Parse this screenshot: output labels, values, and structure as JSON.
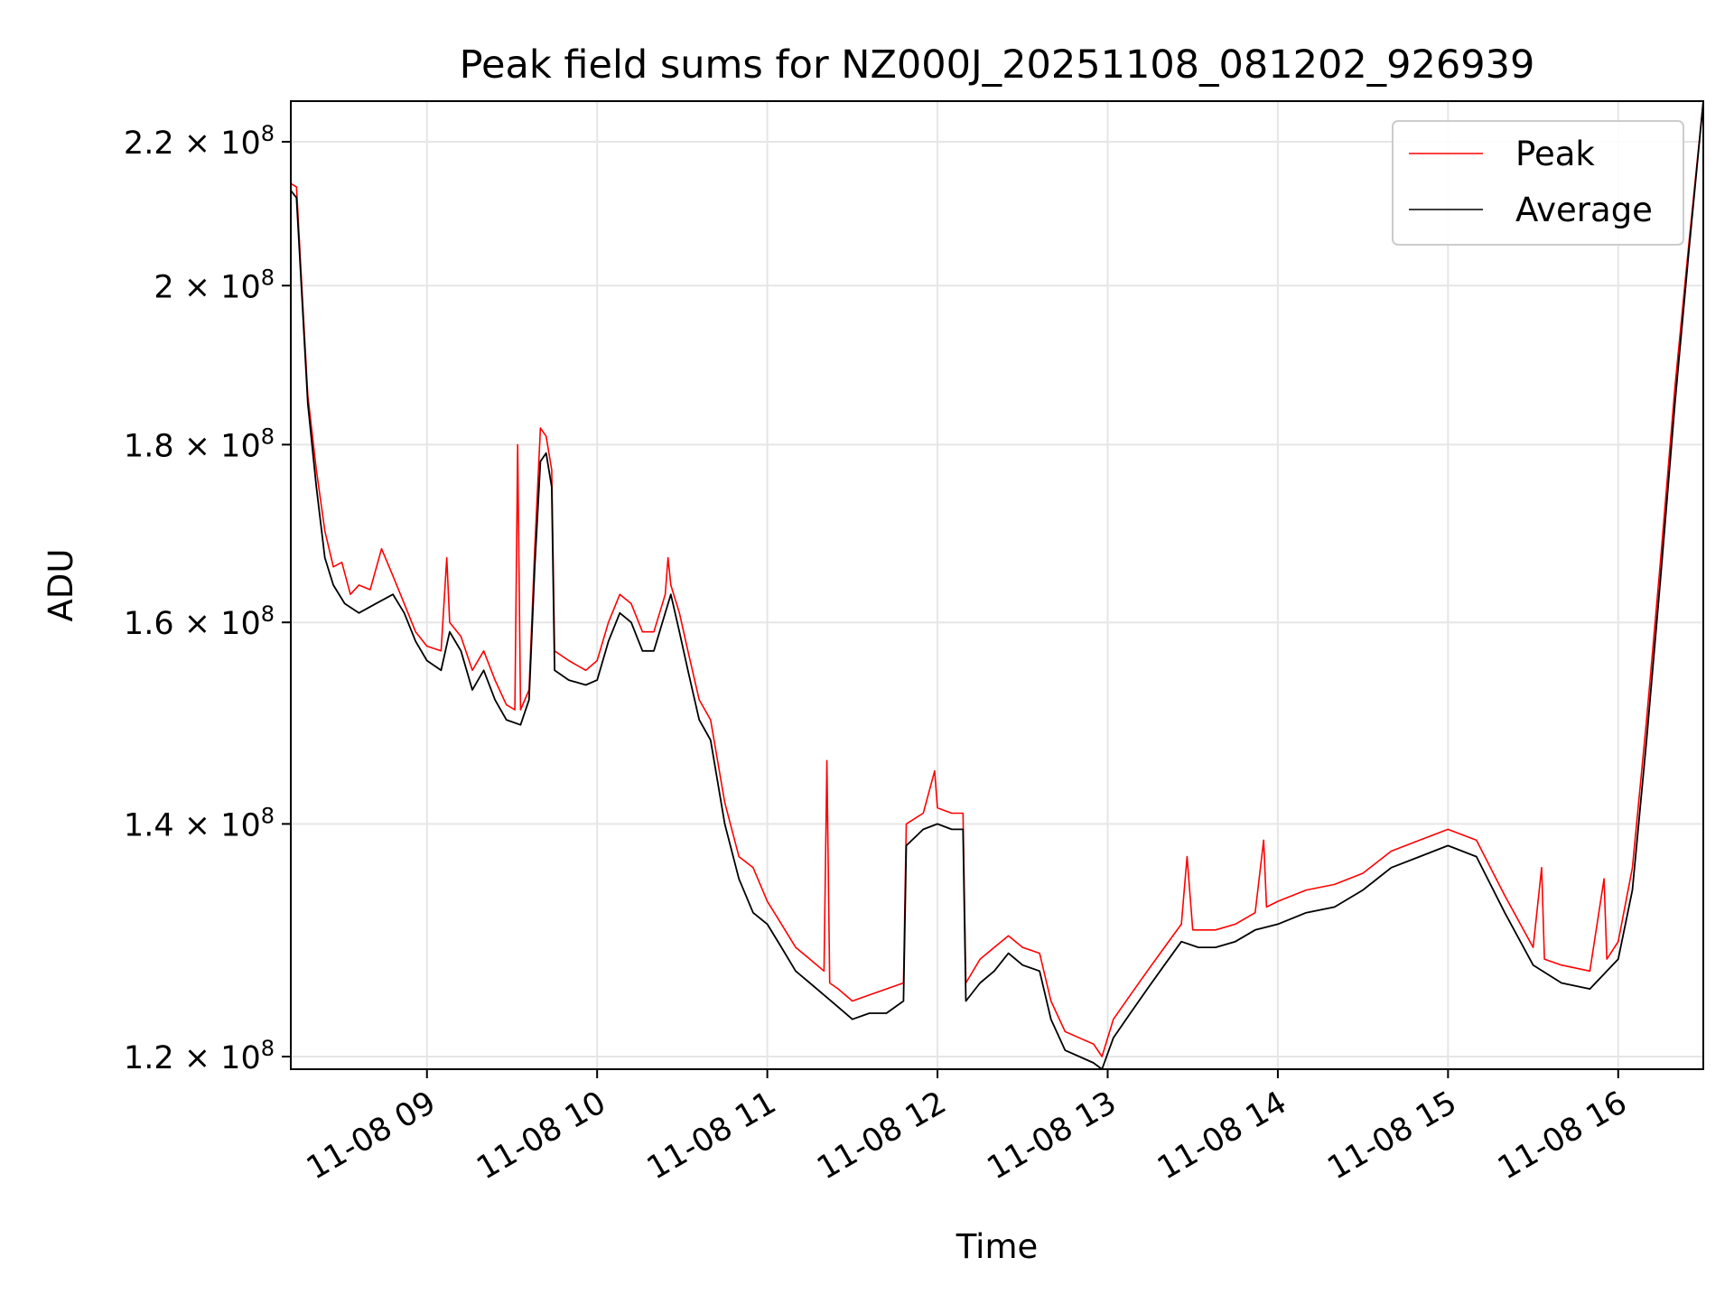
{
  "chart_data": {
    "type": "line",
    "title": "Peak field sums for NZ000J_20251108_081202_926939",
    "xlabel": "Time",
    "ylabel": "ADU",
    "yscale": "log",
    "xlim": [
      "2025-11-08T08:12",
      "2025-11-08T16:30"
    ],
    "ylim": [
      119000000,
      226000000
    ],
    "grid": true,
    "legend": "top-right",
    "x_ticks": [
      {
        "value": "2025-11-08T09:00",
        "label": "11-08 09"
      },
      {
        "value": "2025-11-08T10:00",
        "label": "11-08 10"
      },
      {
        "value": "2025-11-08T11:00",
        "label": "11-08 11"
      },
      {
        "value": "2025-11-08T12:00",
        "label": "11-08 12"
      },
      {
        "value": "2025-11-08T13:00",
        "label": "11-08 13"
      },
      {
        "value": "2025-11-08T14:00",
        "label": "11-08 14"
      },
      {
        "value": "2025-11-08T15:00",
        "label": "11-08 15"
      },
      {
        "value": "2025-11-08T16:00",
        "label": "11-08 16"
      }
    ],
    "y_ticks": [
      {
        "value": 120000000,
        "mantissa": "1.2",
        "base": "× 10",
        "exp": "8"
      },
      {
        "value": 140000000,
        "mantissa": "1.4",
        "base": "× 10",
        "exp": "8"
      },
      {
        "value": 160000000,
        "mantissa": "1.6",
        "base": "× 10",
        "exp": "8"
      },
      {
        "value": 180000000,
        "mantissa": "1.8",
        "base": "× 10",
        "exp": "8"
      },
      {
        "value": 200000000,
        "mantissa": "2",
        "base": "× 10",
        "exp": "8"
      },
      {
        "value": 220000000,
        "mantissa": "2.2",
        "base": "× 10",
        "exp": "8"
      }
    ],
    "series": [
      {
        "name": "Average",
        "color": "#000000",
        "points": [
          [
            "2025-11-08T08:12",
            213000000
          ],
          [
            "2025-11-08T08:14",
            212000000
          ],
          [
            "2025-11-08T08:16",
            198000000
          ],
          [
            "2025-11-08T08:18",
            185000000
          ],
          [
            "2025-11-08T08:21",
            175000000
          ],
          [
            "2025-11-08T08:24",
            167000000
          ],
          [
            "2025-11-08T08:27",
            164000000
          ],
          [
            "2025-11-08T08:31",
            162000000
          ],
          [
            "2025-11-08T08:36",
            161000000
          ],
          [
            "2025-11-08T08:42",
            162000000
          ],
          [
            "2025-11-08T08:48",
            163000000
          ],
          [
            "2025-11-08T08:52",
            161000000
          ],
          [
            "2025-11-08T08:56",
            158000000
          ],
          [
            "2025-11-08T09:00",
            156000000
          ],
          [
            "2025-11-08T09:05",
            155000000
          ],
          [
            "2025-11-08T09:08",
            159000000
          ],
          [
            "2025-11-08T09:12",
            157000000
          ],
          [
            "2025-11-08T09:16",
            153000000
          ],
          [
            "2025-11-08T09:20",
            155000000
          ],
          [
            "2025-11-08T09:24",
            152000000
          ],
          [
            "2025-11-08T09:28",
            150000000
          ],
          [
            "2025-11-08T09:33",
            149500000
          ],
          [
            "2025-11-08T09:36",
            152000000
          ],
          [
            "2025-11-08T09:38",
            166000000
          ],
          [
            "2025-11-08T09:40",
            178000000
          ],
          [
            "2025-11-08T09:42",
            179000000
          ],
          [
            "2025-11-08T09:44",
            175000000
          ],
          [
            "2025-11-08T09:45",
            155000000
          ],
          [
            "2025-11-08T09:50",
            154000000
          ],
          [
            "2025-11-08T09:56",
            153500000
          ],
          [
            "2025-11-08T10:00",
            154000000
          ],
          [
            "2025-11-08T10:04",
            158000000
          ],
          [
            "2025-11-08T10:08",
            161000000
          ],
          [
            "2025-11-08T10:12",
            160000000
          ],
          [
            "2025-11-08T10:16",
            157000000
          ],
          [
            "2025-11-08T10:20",
            157000000
          ],
          [
            "2025-11-08T10:24",
            161000000
          ],
          [
            "2025-11-08T10:26",
            163000000
          ],
          [
            "2025-11-08T10:29",
            159000000
          ],
          [
            "2025-11-08T10:32",
            155000000
          ],
          [
            "2025-11-08T10:36",
            150000000
          ],
          [
            "2025-11-08T10:40",
            148000000
          ],
          [
            "2025-11-08T10:45",
            140000000
          ],
          [
            "2025-11-08T10:50",
            135000000
          ],
          [
            "2025-11-08T10:55",
            132000000
          ],
          [
            "2025-11-08T11:00",
            131000000
          ],
          [
            "2025-11-08T11:05",
            129000000
          ],
          [
            "2025-11-08T11:10",
            127000000
          ],
          [
            "2025-11-08T11:15",
            126000000
          ],
          [
            "2025-11-08T11:20",
            125000000
          ],
          [
            "2025-11-08T11:25",
            124000000
          ],
          [
            "2025-11-08T11:30",
            123000000
          ],
          [
            "2025-11-08T11:36",
            123500000
          ],
          [
            "2025-11-08T11:42",
            123500000
          ],
          [
            "2025-11-08T11:48",
            124500000
          ],
          [
            "2025-11-08T11:49",
            138000000
          ],
          [
            "2025-11-08T11:55",
            139500000
          ],
          [
            "2025-11-08T12:00",
            140000000
          ],
          [
            "2025-11-08T12:05",
            139500000
          ],
          [
            "2025-11-08T12:09",
            139500000
          ],
          [
            "2025-11-08T12:10",
            124500000
          ],
          [
            "2025-11-08T12:15",
            126000000
          ],
          [
            "2025-11-08T12:20",
            127000000
          ],
          [
            "2025-11-08T12:25",
            128500000
          ],
          [
            "2025-11-08T12:30",
            127500000
          ],
          [
            "2025-11-08T12:36",
            127000000
          ],
          [
            "2025-11-08T12:40",
            123000000
          ],
          [
            "2025-11-08T12:45",
            120500000
          ],
          [
            "2025-11-08T12:50",
            120000000
          ],
          [
            "2025-11-08T12:55",
            119500000
          ],
          [
            "2025-11-08T12:58",
            119000000
          ],
          [
            "2025-11-08T13:02",
            121500000
          ],
          [
            "2025-11-08T13:08",
            123500000
          ],
          [
            "2025-11-08T13:14",
            125500000
          ],
          [
            "2025-11-08T13:20",
            127500000
          ],
          [
            "2025-11-08T13:26",
            129500000
          ],
          [
            "2025-11-08T13:32",
            129000000
          ],
          [
            "2025-11-08T13:38",
            129000000
          ],
          [
            "2025-11-08T13:45",
            129500000
          ],
          [
            "2025-11-08T13:52",
            130500000
          ],
          [
            "2025-11-08T14:00",
            131000000
          ],
          [
            "2025-11-08T14:10",
            132000000
          ],
          [
            "2025-11-08T14:20",
            132500000
          ],
          [
            "2025-11-08T14:30",
            134000000
          ],
          [
            "2025-11-08T14:40",
            136000000
          ],
          [
            "2025-11-08T14:50",
            137000000
          ],
          [
            "2025-11-08T15:00",
            138000000
          ],
          [
            "2025-11-08T15:10",
            137000000
          ],
          [
            "2025-11-08T15:20",
            132000000
          ],
          [
            "2025-11-08T15:30",
            127500000
          ],
          [
            "2025-11-08T15:40",
            126000000
          ],
          [
            "2025-11-08T15:50",
            125500000
          ],
          [
            "2025-11-08T16:00",
            128000000
          ],
          [
            "2025-11-08T16:05",
            134000000
          ],
          [
            "2025-11-08T16:10",
            148000000
          ],
          [
            "2025-11-08T16:15",
            165000000
          ],
          [
            "2025-11-08T16:20",
            185000000
          ],
          [
            "2025-11-08T16:25",
            205000000
          ],
          [
            "2025-11-08T16:30",
            226000000
          ]
        ]
      },
      {
        "name": "Peak",
        "color": "#ff0000",
        "points": [
          [
            "2025-11-08T08:12",
            214000000
          ],
          [
            "2025-11-08T08:14",
            213500000
          ],
          [
            "2025-11-08T08:16",
            199000000
          ],
          [
            "2025-11-08T08:18",
            186000000
          ],
          [
            "2025-11-08T08:21",
            177000000
          ],
          [
            "2025-11-08T08:24",
            170000000
          ],
          [
            "2025-11-08T08:27",
            166000000
          ],
          [
            "2025-11-08T08:30",
            166500000
          ],
          [
            "2025-11-08T08:33",
            163000000
          ],
          [
            "2025-11-08T08:36",
            164000000
          ],
          [
            "2025-11-08T08:40",
            163500000
          ],
          [
            "2025-11-08T08:44",
            168000000
          ],
          [
            "2025-11-08T08:48",
            165000000
          ],
          [
            "2025-11-08T08:52",
            162000000
          ],
          [
            "2025-11-08T08:56",
            159000000
          ],
          [
            "2025-11-08T09:00",
            157500000
          ],
          [
            "2025-11-08T09:05",
            157000000
          ],
          [
            "2025-11-08T09:07",
            167000000
          ],
          [
            "2025-11-08T09:08",
            160000000
          ],
          [
            "2025-11-08T09:12",
            158500000
          ],
          [
            "2025-11-08T09:16",
            155000000
          ],
          [
            "2025-11-08T09:20",
            157000000
          ],
          [
            "2025-11-08T09:24",
            154000000
          ],
          [
            "2025-11-08T09:28",
            151500000
          ],
          [
            "2025-11-08T09:31",
            151000000
          ],
          [
            "2025-11-08T09:32",
            180000000
          ],
          [
            "2025-11-08T09:33",
            151000000
          ],
          [
            "2025-11-08T09:36",
            153000000
          ],
          [
            "2025-11-08T09:38",
            168000000
          ],
          [
            "2025-11-08T09:40",
            182000000
          ],
          [
            "2025-11-08T09:42",
            181000000
          ],
          [
            "2025-11-08T09:44",
            177000000
          ],
          [
            "2025-11-08T09:45",
            157000000
          ],
          [
            "2025-11-08T09:50",
            156000000
          ],
          [
            "2025-11-08T09:56",
            155000000
          ],
          [
            "2025-11-08T10:00",
            156000000
          ],
          [
            "2025-11-08T10:04",
            160000000
          ],
          [
            "2025-11-08T10:08",
            163000000
          ],
          [
            "2025-11-08T10:12",
            162000000
          ],
          [
            "2025-11-08T10:16",
            159000000
          ],
          [
            "2025-11-08T10:20",
            159000000
          ],
          [
            "2025-11-08T10:24",
            163000000
          ],
          [
            "2025-11-08T10:25",
            167000000
          ],
          [
            "2025-11-08T10:26",
            164000000
          ],
          [
            "2025-11-08T10:29",
            161000000
          ],
          [
            "2025-11-08T10:32",
            157000000
          ],
          [
            "2025-11-08T10:36",
            152000000
          ],
          [
            "2025-11-08T10:40",
            150000000
          ],
          [
            "2025-11-08T10:45",
            142000000
          ],
          [
            "2025-11-08T10:50",
            137000000
          ],
          [
            "2025-11-08T10:55",
            136000000
          ],
          [
            "2025-11-08T11:00",
            133000000
          ],
          [
            "2025-11-08T11:05",
            131000000
          ],
          [
            "2025-11-08T11:10",
            129000000
          ],
          [
            "2025-11-08T11:15",
            128000000
          ],
          [
            "2025-11-08T11:20",
            127000000
          ],
          [
            "2025-11-08T11:21",
            146000000
          ],
          [
            "2025-11-08T11:22",
            126000000
          ],
          [
            "2025-11-08T11:25",
            125500000
          ],
          [
            "2025-11-08T11:30",
            124500000
          ],
          [
            "2025-11-08T11:36",
            125000000
          ],
          [
            "2025-11-08T11:42",
            125500000
          ],
          [
            "2025-11-08T11:48",
            126000000
          ],
          [
            "2025-11-08T11:49",
            140000000
          ],
          [
            "2025-11-08T11:55",
            141000000
          ],
          [
            "2025-11-08T11:59",
            145000000
          ],
          [
            "2025-11-08T12:00",
            141500000
          ],
          [
            "2025-11-08T12:05",
            141000000
          ],
          [
            "2025-11-08T12:09",
            141000000
          ],
          [
            "2025-11-08T12:10",
            126000000
          ],
          [
            "2025-11-08T12:15",
            128000000
          ],
          [
            "2025-11-08T12:20",
            129000000
          ],
          [
            "2025-11-08T12:25",
            130000000
          ],
          [
            "2025-11-08T12:30",
            129000000
          ],
          [
            "2025-11-08T12:36",
            128500000
          ],
          [
            "2025-11-08T12:40",
            124500000
          ],
          [
            "2025-11-08T12:45",
            122000000
          ],
          [
            "2025-11-08T12:50",
            121500000
          ],
          [
            "2025-11-08T12:55",
            121000000
          ],
          [
            "2025-11-08T12:58",
            120000000
          ],
          [
            "2025-11-08T13:02",
            123000000
          ],
          [
            "2025-11-08T13:08",
            125000000
          ],
          [
            "2025-11-08T13:14",
            127000000
          ],
          [
            "2025-11-08T13:20",
            129000000
          ],
          [
            "2025-11-08T13:26",
            131000000
          ],
          [
            "2025-11-08T13:28",
            137000000
          ],
          [
            "2025-11-08T13:30",
            130500000
          ],
          [
            "2025-11-08T13:38",
            130500000
          ],
          [
            "2025-11-08T13:45",
            131000000
          ],
          [
            "2025-11-08T13:52",
            132000000
          ],
          [
            "2025-11-08T13:55",
            138500000
          ],
          [
            "2025-11-08T13:56",
            132500000
          ],
          [
            "2025-11-08T14:00",
            133000000
          ],
          [
            "2025-11-08T14:10",
            134000000
          ],
          [
            "2025-11-08T14:20",
            134500000
          ],
          [
            "2025-11-08T14:30",
            135500000
          ],
          [
            "2025-11-08T14:40",
            137500000
          ],
          [
            "2025-11-08T14:50",
            138500000
          ],
          [
            "2025-11-08T15:00",
            139500000
          ],
          [
            "2025-11-08T15:10",
            138500000
          ],
          [
            "2025-11-08T15:20",
            133500000
          ],
          [
            "2025-11-08T15:30",
            129000000
          ],
          [
            "2025-11-08T15:33",
            136000000
          ],
          [
            "2025-11-08T15:34",
            128000000
          ],
          [
            "2025-11-08T15:40",
            127500000
          ],
          [
            "2025-11-08T15:50",
            127000000
          ],
          [
            "2025-11-08T15:55",
            135000000
          ],
          [
            "2025-11-08T15:56",
            128000000
          ],
          [
            "2025-11-08T16:00",
            129500000
          ],
          [
            "2025-11-08T16:05",
            136000000
          ],
          [
            "2025-11-08T16:10",
            150000000
          ],
          [
            "2025-11-08T16:15",
            167000000
          ],
          [
            "2025-11-08T16:20",
            187000000
          ],
          [
            "2025-11-08T16:25",
            206000000
          ],
          [
            "2025-11-08T16:30",
            226000000
          ]
        ]
      }
    ],
    "legend_entries": [
      {
        "label": "Peak",
        "color": "#ff0000"
      },
      {
        "label": "Average",
        "color": "#000000"
      }
    ]
  }
}
